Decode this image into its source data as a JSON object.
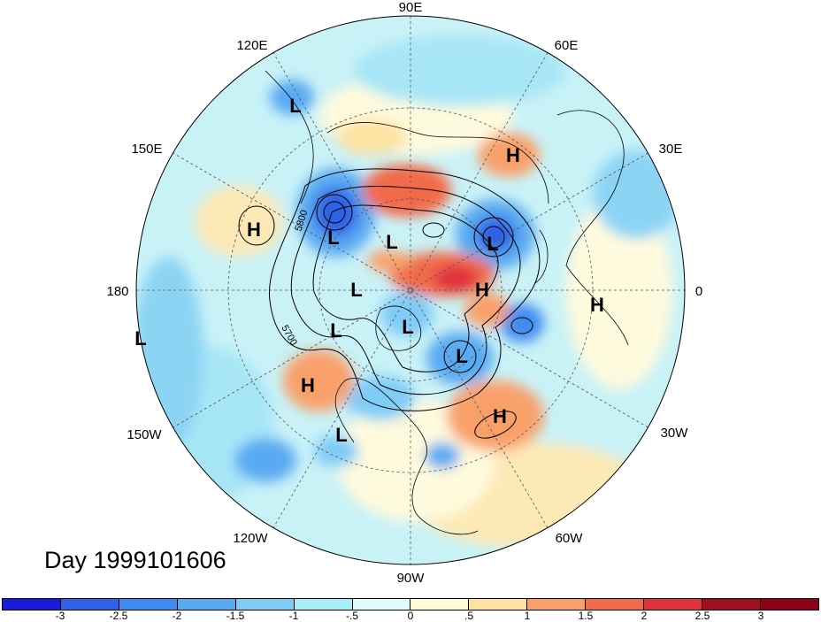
{
  "title": "Day 1999101606",
  "longitude_labels": {
    "e90": "90E",
    "e60": "60E",
    "e30": "30E",
    "zero": "0",
    "w30": "30W",
    "w60": "60W",
    "w90": "90W",
    "w120": "120W",
    "w150": "150W",
    "d180": "180",
    "e150": "150E",
    "e120": "120E"
  },
  "contour_labels": {
    "c5800": "5800",
    "c5700": "5700"
  },
  "pressure_centers": [
    {
      "type": "H"
    },
    {
      "type": "H"
    },
    {
      "type": "H"
    },
    {
      "type": "H"
    },
    {
      "type": "H"
    },
    {
      "type": "H"
    },
    {
      "type": "L"
    },
    {
      "type": "L"
    },
    {
      "type": "L"
    },
    {
      "type": "L"
    },
    {
      "type": "L"
    },
    {
      "type": "L"
    },
    {
      "type": "L"
    },
    {
      "type": "L"
    },
    {
      "type": "L"
    },
    {
      "type": "L"
    }
  ],
  "colorbar": {
    "ticks": [
      "-3",
      "-2.5",
      "-2",
      "-1.5",
      "-1",
      "-.5",
      "0",
      ".5",
      "1",
      "1.5",
      "2",
      "2.5",
      "3"
    ],
    "colors": [
      "#1a1adc",
      "#2f62e6",
      "#3f8cf0",
      "#5aaaf2",
      "#7fccf7",
      "#a8eef9",
      "#e0fbfc",
      "#fefbd8",
      "#fde2a2",
      "#f9a06a",
      "#f26a4a",
      "#e0303c",
      "#a01020",
      "#8c0018"
    ]
  }
}
